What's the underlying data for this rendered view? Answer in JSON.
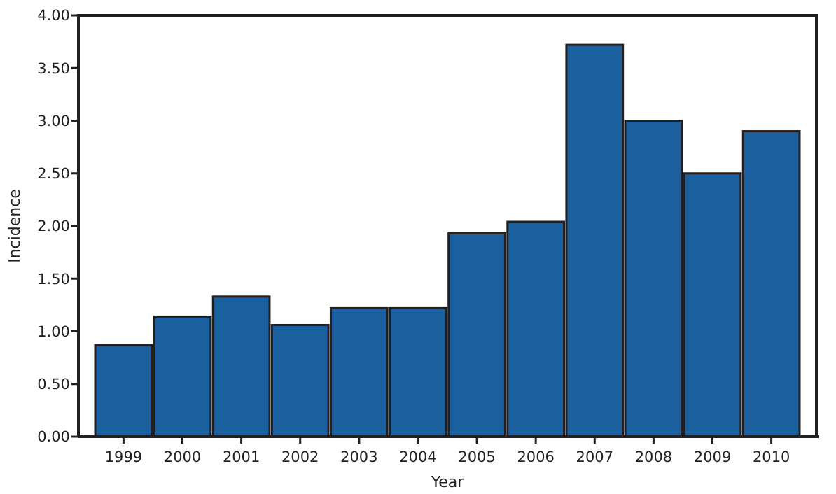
{
  "chart_data": {
    "type": "bar",
    "xlabel": "Year",
    "ylabel": "Incidence",
    "categories": [
      "1999",
      "2000",
      "2001",
      "2002",
      "2003",
      "2004",
      "2005",
      "2006",
      "2007",
      "2008",
      "2009",
      "2010"
    ],
    "values": [
      0.87,
      1.14,
      1.33,
      1.06,
      1.22,
      1.22,
      1.93,
      2.04,
      3.72,
      3.0,
      2.5,
      2.9
    ],
    "color": "#1b609e",
    "ylim": [
      0,
      4
    ],
    "yticks": [
      {
        "value": 0,
        "label": "0.00"
      },
      {
        "value": 0.5,
        "label": "0.50"
      },
      {
        "value": 1,
        "label": "1.00"
      },
      {
        "value": 1.5,
        "label": "1.50"
      },
      {
        "value": 2,
        "label": "2.00"
      },
      {
        "value": 2.5,
        "label": "2.50"
      },
      {
        "value": 3,
        "label": "3.00"
      },
      {
        "value": 3.5,
        "label": "3.50"
      },
      {
        "value": 4,
        "label": "4.00"
      }
    ],
    "grid": false
  }
}
